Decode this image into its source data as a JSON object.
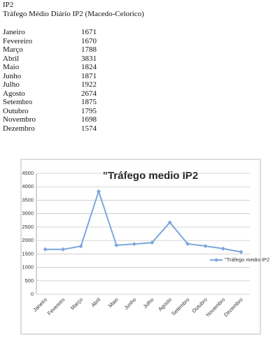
{
  "document": {
    "label": "IP2",
    "title": "Tráfego Médio Diário IP2 (Macedo-Celorico)"
  },
  "chart_data": {
    "type": "line",
    "title": "\"Tráfego medio IP2",
    "categories": [
      "Janeiro",
      "Fevereiro",
      "Março",
      "Abril",
      "Maio",
      "Junho",
      "Julho",
      "Agosto",
      "Setembro",
      "Outubro",
      "Novembro",
      "Dezembro"
    ],
    "series": [
      {
        "name": "\"Tráfego medio IP2",
        "color": "#7ba7dc",
        "values": [
          1671,
          1670,
          1788,
          3831,
          1824,
          1871,
          1922,
          2674,
          1875,
          1795,
          1698,
          1574
        ]
      }
    ],
    "ylim": [
      0,
      4500
    ],
    "yticks": [
      0,
      500,
      1000,
      1500,
      2000,
      2500,
      3000,
      3500,
      4000,
      4500
    ],
    "grid": true,
    "legend": "right"
  }
}
